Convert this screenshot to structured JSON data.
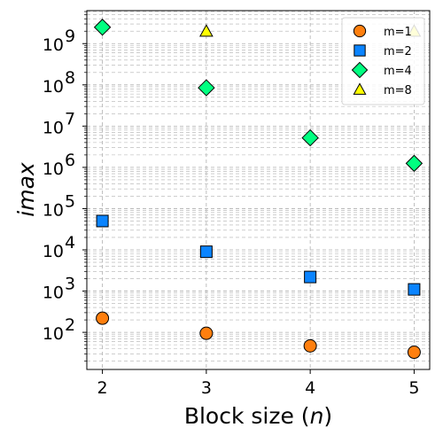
{
  "chart_data": {
    "type": "scatter",
    "xlabel_text": "Block size (",
    "xlabel_var": "n",
    "xlabel_close": ")",
    "ylabel": "imax",
    "x_ticks": [
      2,
      3,
      4,
      5
    ],
    "x_tick_labels": [
      "2",
      "3",
      "4",
      "5"
    ],
    "xlim": [
      1.85,
      5.15
    ],
    "y_scale": "log",
    "ylim_exp": [
      1.1,
      9.8
    ],
    "y_tick_exps": [
      2,
      3,
      4,
      5,
      6,
      7,
      8,
      9
    ],
    "y_tick_base": "10",
    "y_tick_sups": [
      "2",
      "3",
      "4",
      "5",
      "6",
      "7",
      "8",
      "9"
    ],
    "grid": true,
    "legend_position": "top-right",
    "series": [
      {
        "name": "m=1",
        "marker": "circle",
        "color": "#ff7f0e",
        "x": [
          2,
          3,
          4,
          5
        ],
        "y": [
          220,
          95,
          47,
          33
        ]
      },
      {
        "name": "m=2",
        "marker": "square",
        "color": "#0a84ff",
        "x": [
          2,
          3,
          4,
          5
        ],
        "y": [
          50000,
          9000,
          2200,
          1100
        ]
      },
      {
        "name": "m=4",
        "marker": "diamond",
        "color": "#00ff80",
        "x": [
          2,
          3,
          4,
          5
        ],
        "y": [
          2500000000,
          85000000,
          5200000,
          1250000
        ]
      },
      {
        "name": "m=8",
        "marker": "triangle",
        "color": "#ffff00",
        "x": [
          3,
          5
        ],
        "y": [
          2000000000,
          2000000000
        ]
      }
    ]
  }
}
